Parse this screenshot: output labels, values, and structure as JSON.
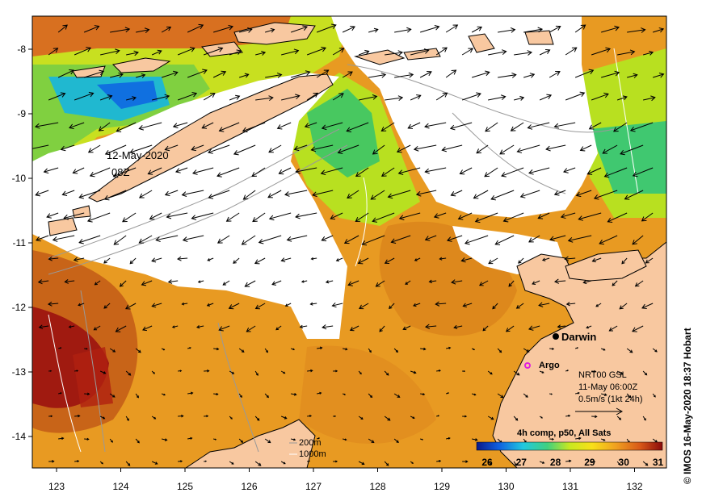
{
  "map": {
    "date_label_line1": "12-May-2020",
    "date_label_line2": "08Z",
    "city_label": "Darwin",
    "argo_label": "Argo",
    "current_source": "NRT00 GSL",
    "current_time": "11-May 06:00Z",
    "current_scale": "0.5m/s (1kt 24h)",
    "composite_label": "4h comp, p50, All Sats",
    "isobath_1": "200m",
    "isobath_2": "1000m",
    "credit": "© IMOS 16-May-2020 18:37 Hobart",
    "lon_ticks": [
      "123",
      "124",
      "125",
      "126",
      "127",
      "128",
      "129",
      "130",
      "131",
      "132"
    ],
    "lat_ticks": [
      "-8",
      "-9",
      "-10",
      "-11",
      "-12",
      "-13",
      "-14"
    ],
    "colorbar_ticks": [
      "26",
      "27",
      "28",
      "29",
      "30",
      "31"
    ],
    "colors": {
      "land": "#f8c8a0",
      "cloud": "#ffffff",
      "sst_cold": "#0a1a8a",
      "sst_warm": "#8a0a0a"
    }
  }
}
